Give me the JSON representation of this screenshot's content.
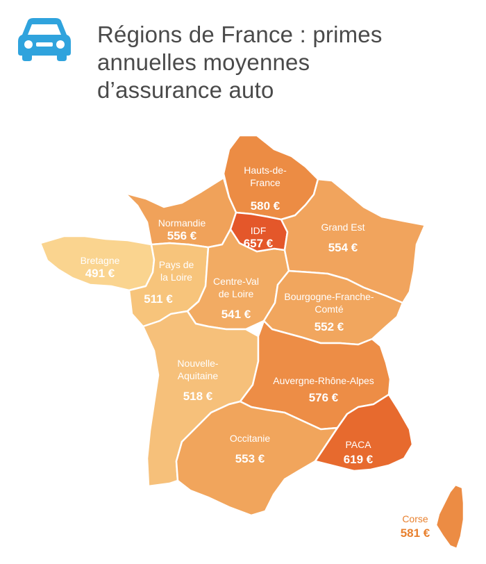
{
  "header": {
    "icon": "car-icon",
    "icon_color": "#2fa3dd",
    "title_lines": [
      "Régions de France : primes",
      "annuelles moyennes",
      "d’assurance auto"
    ]
  },
  "regions": {
    "hauts_de_france": {
      "name_lines": [
        "Hauts-de-",
        "France"
      ],
      "value": "580 €",
      "color": "#ec8c44"
    },
    "normandie": {
      "name_lines": [
        "Normandie"
      ],
      "value": "556 €",
      "color": "#f0a25a"
    },
    "idf": {
      "name_lines": [
        "IDF"
      ],
      "value": "657 €",
      "color": "#e4572a"
    },
    "grand_est": {
      "name_lines": [
        "Grand Est"
      ],
      "value": "554 €",
      "color": "#f1a45d"
    },
    "bretagne": {
      "name_lines": [
        "Bretagne"
      ],
      "value": "491 €",
      "color": "#fad48f"
    },
    "pays_de_la_loire": {
      "name_lines": [
        "Pays de",
        "la Loire"
      ],
      "value": "511 €",
      "color": "#f7c47b"
    },
    "centre_val_de_loire": {
      "name_lines": [
        "Centre-Val",
        "de Loire"
      ],
      "value": "541 €",
      "color": "#f2ab63"
    },
    "bourgogne_franche_comte": {
      "name_lines": [
        "Bourgogne-Franche-",
        "Comté"
      ],
      "value": "552 €",
      "color": "#f1a65e"
    },
    "nouvelle_aquitaine": {
      "name_lines": [
        "Nouvelle-",
        "Aquitaine"
      ],
      "value": "518 €",
      "color": "#f6c07a"
    },
    "auvergne_rhone_alpes": {
      "name_lines": [
        "Auvergne-Rhône-Alpes"
      ],
      "value": "576 €",
      "color": "#ed8d46"
    },
    "occitanie": {
      "name_lines": [
        "Occitanie"
      ],
      "value": "553 €",
      "color": "#f1a55c"
    },
    "paca": {
      "name_lines": [
        "PACA"
      ],
      "value": "619 €",
      "color": "#e76a2e"
    },
    "corse": {
      "name_lines": [
        "Corse"
      ],
      "value": "581 €",
      "color": "#ec8c44"
    }
  }
}
